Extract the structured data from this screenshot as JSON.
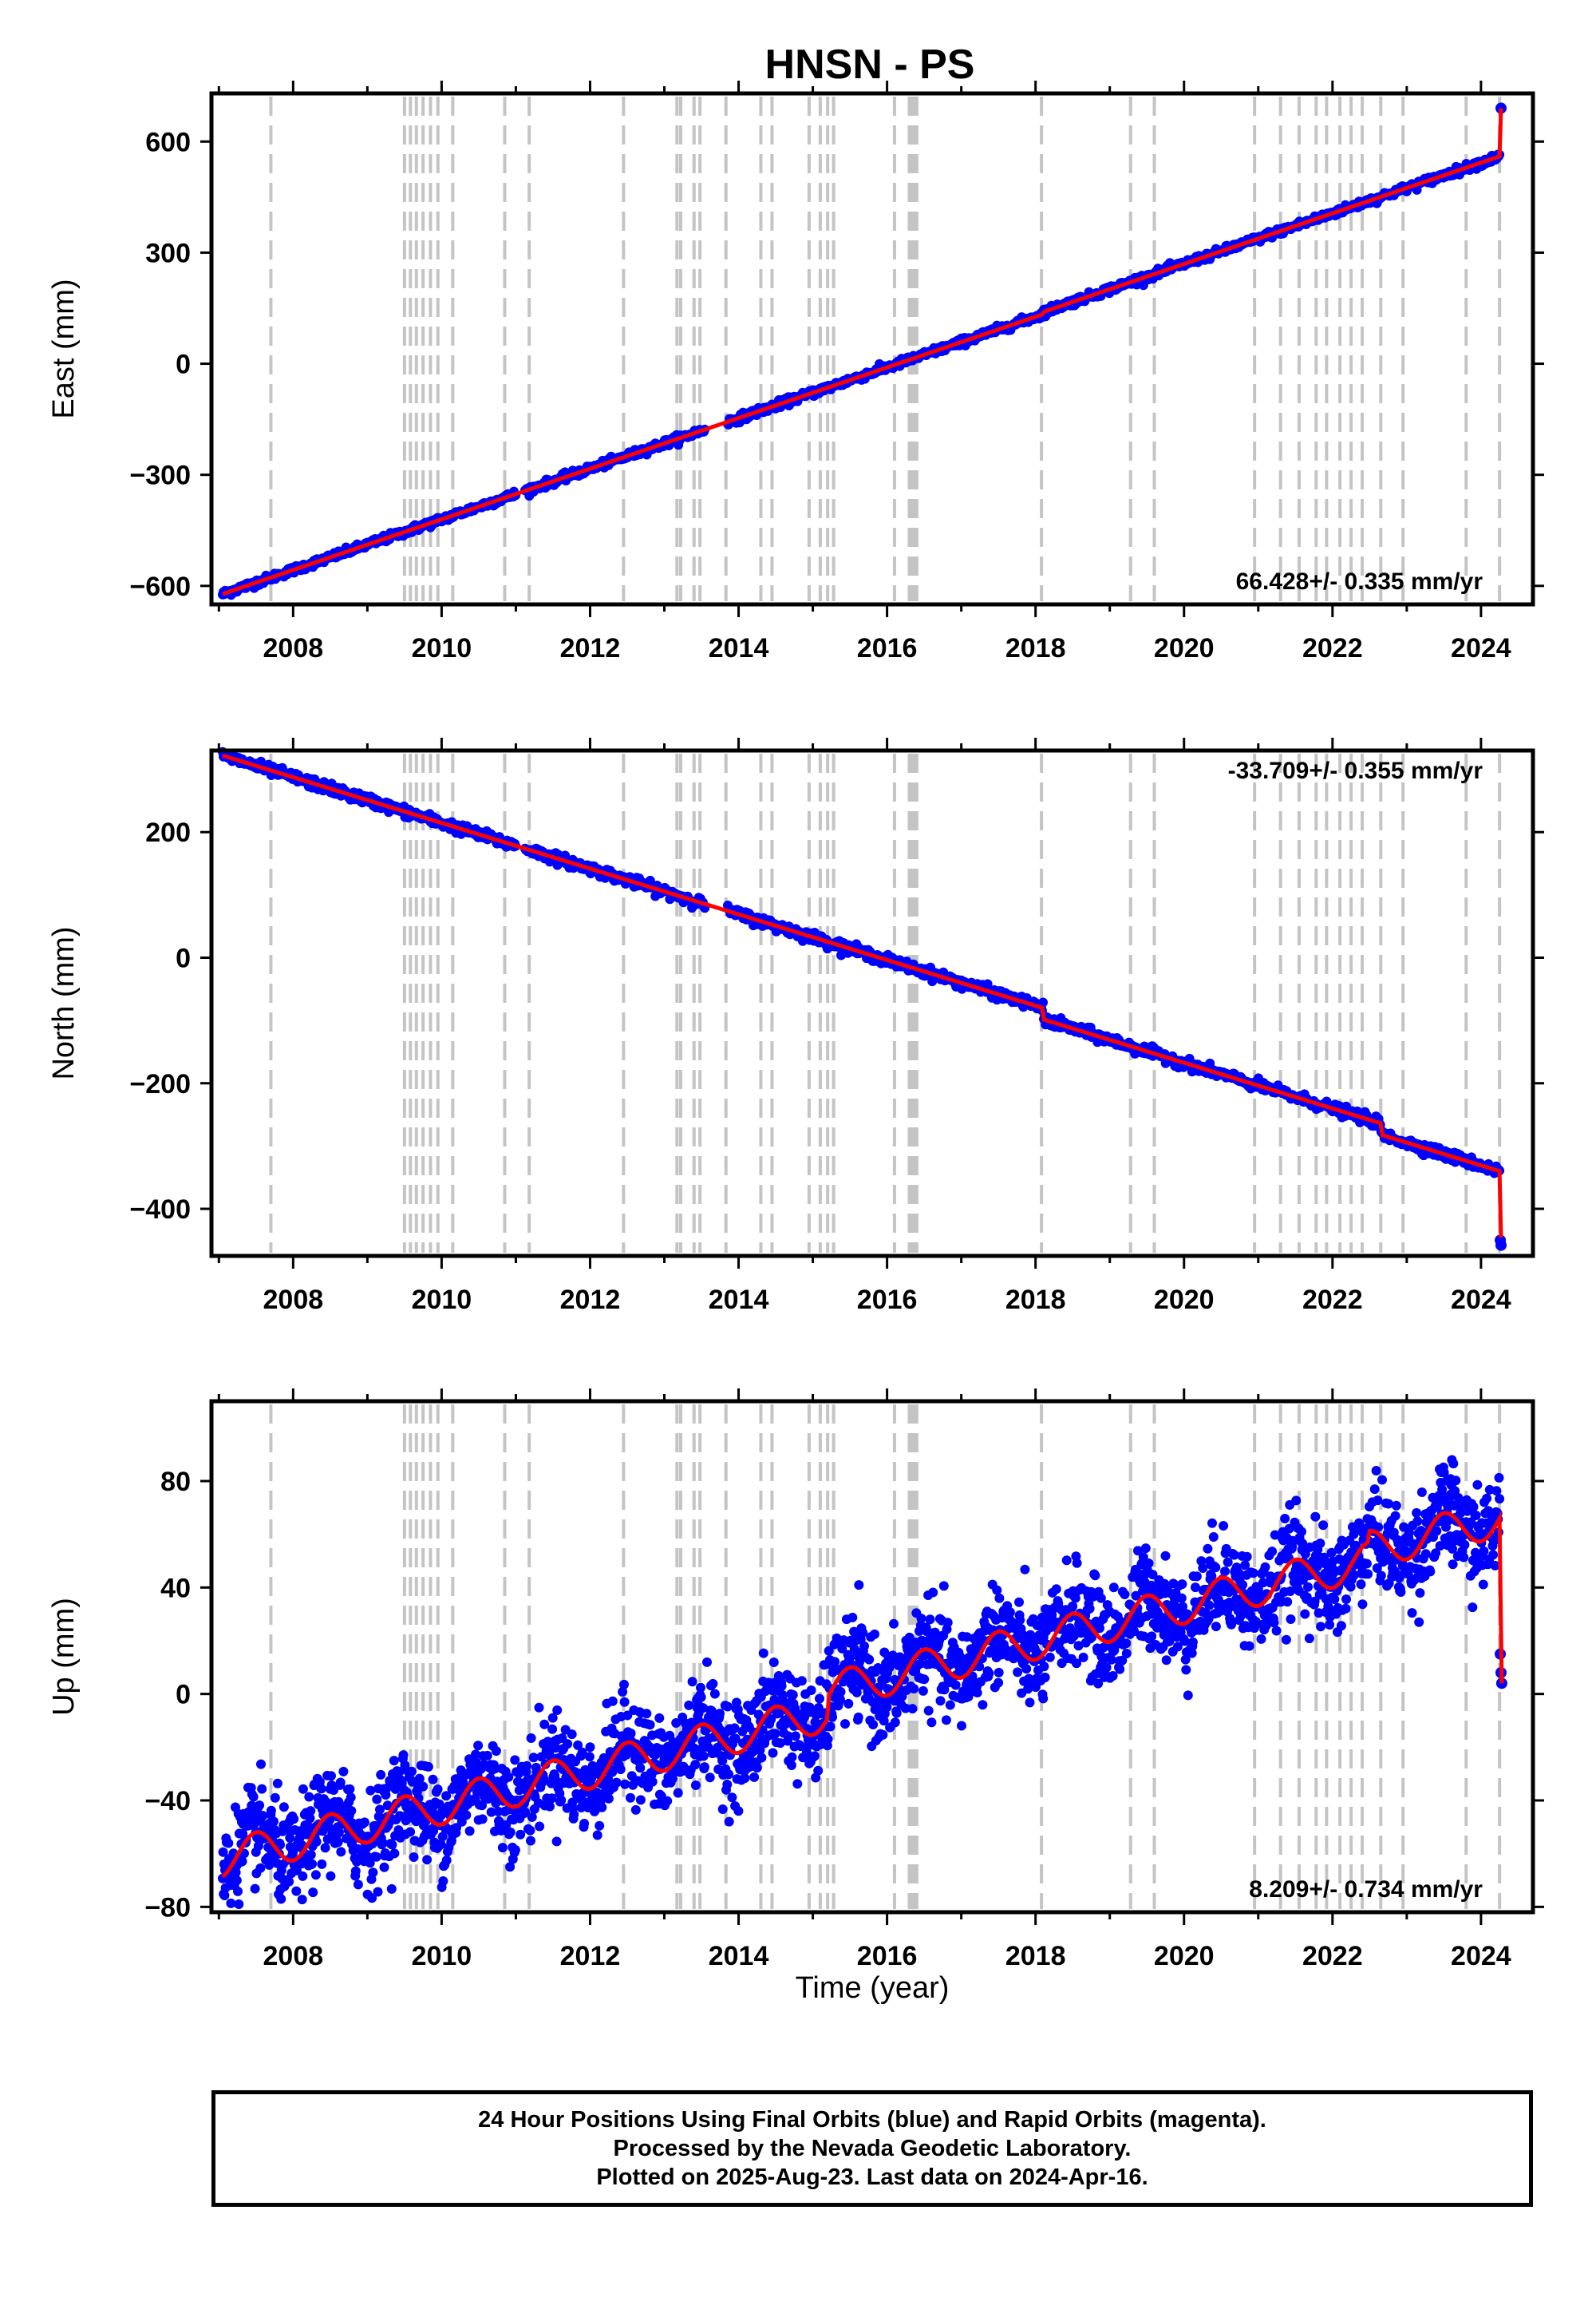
{
  "title": "HNSN - PS",
  "chart_data": [
    {
      "type": "scatter",
      "component": "east",
      "ylabel": "East (mm)",
      "xlim": [
        2006.9,
        2024.7
      ],
      "ylim": [
        -650,
        730
      ],
      "xticks": [
        2008,
        2010,
        2012,
        2014,
        2016,
        2018,
        2020,
        2022,
        2024
      ],
      "yticks": [
        -600,
        -300,
        0,
        300,
        600
      ],
      "ytick_labels": [
        "−600",
        "−300",
        "0",
        "300",
        "600"
      ],
      "rate_text": "66.428+/- 0.335 mm/yr",
      "rate_mm_per_yr": 66.428,
      "rate_sigma": 0.335,
      "start": [
        2007.05,
        -622
      ],
      "end_value_before_jump": 560,
      "final_points": [
        [
          2024.27,
          690
        ]
      ],
      "noise_mm": 5,
      "seasonal_amp_mm": 0,
      "steps": [
        [
          2018.1,
          6
        ]
      ],
      "series": [
        {
          "name": "24 Hour Positions (blue)",
          "color": "#0000ff"
        },
        {
          "name": "Model (red)",
          "color": "#ff0000"
        }
      ]
    },
    {
      "type": "scatter",
      "component": "north",
      "ylabel": "North (mm)",
      "xlim": [
        2006.9,
        2024.7
      ],
      "ylim": [
        -475,
        330
      ],
      "xticks": [
        2008,
        2010,
        2012,
        2014,
        2016,
        2018,
        2020,
        2022,
        2024
      ],
      "yticks": [
        -400,
        -200,
        0,
        200
      ],
      "ytick_labels": [
        "−400",
        "−200",
        "0",
        "200"
      ],
      "rate_text": "-33.709+/- 0.355 mm/yr",
      "rate_mm_per_yr": -33.709,
      "rate_sigma": 0.355,
      "start": [
        2007.05,
        322
      ],
      "end_value_before_jump": -340,
      "final_points": [
        [
          2024.26,
          -450
        ],
        [
          2024.27,
          -458
        ]
      ],
      "noise_mm": 4,
      "seasonal_amp_mm": 0,
      "steps": [
        [
          2018.1,
          -18
        ],
        [
          2022.65,
          -18
        ]
      ],
      "series": [
        {
          "name": "24 Hour Positions (blue)",
          "color": "#0000ff"
        },
        {
          "name": "Model (red)",
          "color": "#ff0000"
        }
      ]
    },
    {
      "type": "scatter",
      "component": "up",
      "ylabel": "Up (mm)",
      "xlim": [
        2006.9,
        2024.7
      ],
      "ylim": [
        -82,
        110
      ],
      "xticks": [
        2008,
        2010,
        2012,
        2014,
        2016,
        2018,
        2020,
        2022,
        2024
      ],
      "yticks": [
        -80,
        -40,
        0,
        40,
        80
      ],
      "ytick_labels": [
        "−80",
        "−40",
        "0",
        "40",
        "80"
      ],
      "rate_text": "8.209+/- 0.734 mm/yr",
      "rate_mm_per_yr": 8.209,
      "rate_sigma": 0.734,
      "start": [
        2007.05,
        -62
      ],
      "end_value_before_jump": 66,
      "final_points": [
        [
          2024.26,
          15
        ],
        [
          2024.27,
          8
        ],
        [
          2024.28,
          4
        ]
      ],
      "noise_mm": 9,
      "seasonal_amp_mm": 7,
      "steps": [
        [
          2015.2,
          8
        ],
        [
          2022.5,
          4
        ]
      ],
      "series": [
        {
          "name": "24 Hour Positions (blue)",
          "color": "#0000ff"
        },
        {
          "name": "Model (red)",
          "color": "#ff0000"
        }
      ]
    }
  ],
  "event_lines": [
    2007.7,
    2009.5,
    2009.58,
    2009.66,
    2009.75,
    2009.85,
    2009.95,
    2010.15,
    2010.85,
    2011.18,
    2012.45,
    2013.17,
    2013.22,
    2013.4,
    2013.48,
    2013.83,
    2014.3,
    2014.45,
    2014.95,
    2015.1,
    2015.2,
    2015.28,
    2016.1,
    2016.3,
    2016.33,
    2016.36,
    2016.4,
    2018.08,
    2019.28,
    2019.6,
    2020.95,
    2021.3,
    2021.55,
    2021.78,
    2021.92,
    2022.1,
    2022.25,
    2022.4,
    2022.65,
    2022.95,
    2023.8,
    2024.25
  ],
  "xlabel": "Time (year)",
  "footer": {
    "line1": "24 Hour Positions Using Final Orbits (blue) and Rapid Orbits (magenta).",
    "line2": "Processed by the Nevada Geodetic Laboratory.",
    "line3": "Plotted on 2025-Aug-23. Last data on 2024-Apr-16."
  }
}
